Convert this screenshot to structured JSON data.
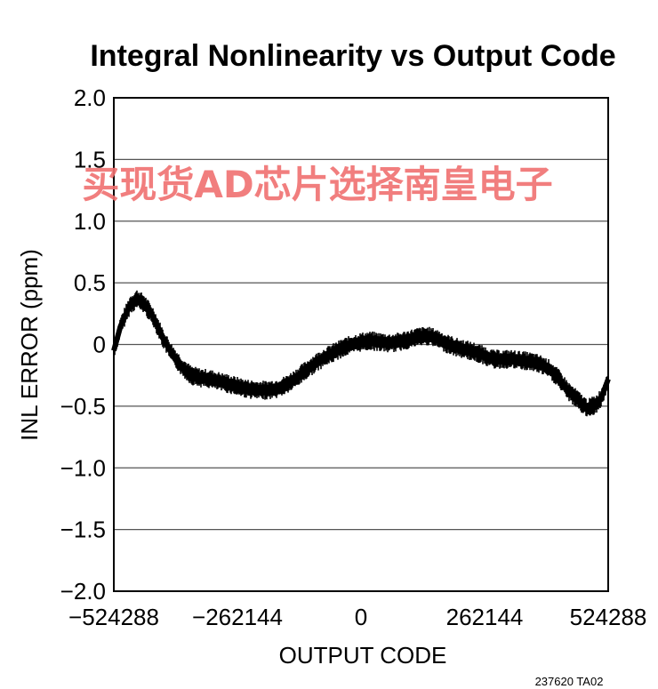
{
  "chart_data": {
    "type": "line",
    "title": "Integral Nonlinearity vs Output Code",
    "xlabel": "OUTPUT CODE",
    "ylabel": "INL ERROR (ppm)",
    "xlim": [
      -524288,
      524288
    ],
    "ylim": [
      -2.0,
      2.0
    ],
    "x_ticks": [
      -524288,
      -262144,
      0,
      262144,
      524288
    ],
    "x_tick_labels": [
      "−524288",
      "−262144",
      "0",
      "262144",
      "524288"
    ],
    "y_ticks": [
      2.0,
      1.5,
      1.0,
      0.5,
      0,
      -0.5,
      -1.0,
      -1.5,
      -2.0
    ],
    "y_tick_labels": [
      "2.0",
      "1.5",
      "1.0",
      "0.5",
      "0",
      "−0.5",
      "−1.0",
      "−1.5",
      "−2.0"
    ],
    "grid": "horizontal",
    "series": [
      {
        "color": "#000000",
        "band_halfwidth": 0.06,
        "x": [
          -524288,
          -510000,
          -490000,
          -475000,
          -460000,
          -440000,
          -420000,
          -400000,
          -380000,
          -360000,
          -340000,
          -320000,
          -300000,
          -280000,
          -262144,
          -240000,
          -220000,
          -200000,
          -180000,
          -160000,
          -140000,
          -120000,
          -100000,
          -80000,
          -60000,
          -40000,
          -20000,
          0,
          20000,
          40000,
          60000,
          80000,
          100000,
          120000,
          140000,
          160000,
          180000,
          200000,
          220000,
          240000,
          262144,
          280000,
          300000,
          320000,
          340000,
          360000,
          380000,
          400000,
          420000,
          440000,
          460000,
          480000,
          500000,
          510000,
          524288
        ],
        "y": [
          -0.05,
          0.15,
          0.32,
          0.37,
          0.33,
          0.22,
          0.05,
          -0.08,
          -0.18,
          -0.25,
          -0.27,
          -0.28,
          -0.3,
          -0.32,
          -0.34,
          -0.36,
          -0.37,
          -0.37,
          -0.36,
          -0.33,
          -0.28,
          -0.22,
          -0.16,
          -0.11,
          -0.07,
          -0.03,
          0.0,
          0.02,
          0.03,
          0.02,
          0.01,
          0.02,
          0.04,
          0.06,
          0.07,
          0.05,
          0.01,
          -0.02,
          -0.04,
          -0.06,
          -0.09,
          -0.12,
          -0.12,
          -0.12,
          -0.13,
          -0.14,
          -0.16,
          -0.2,
          -0.28,
          -0.38,
          -0.45,
          -0.52,
          -0.48,
          -0.43,
          -0.28
        ]
      }
    ]
  },
  "watermark": "买现货AD芯片选择南皇电子",
  "figure_id": "237620 TA02"
}
